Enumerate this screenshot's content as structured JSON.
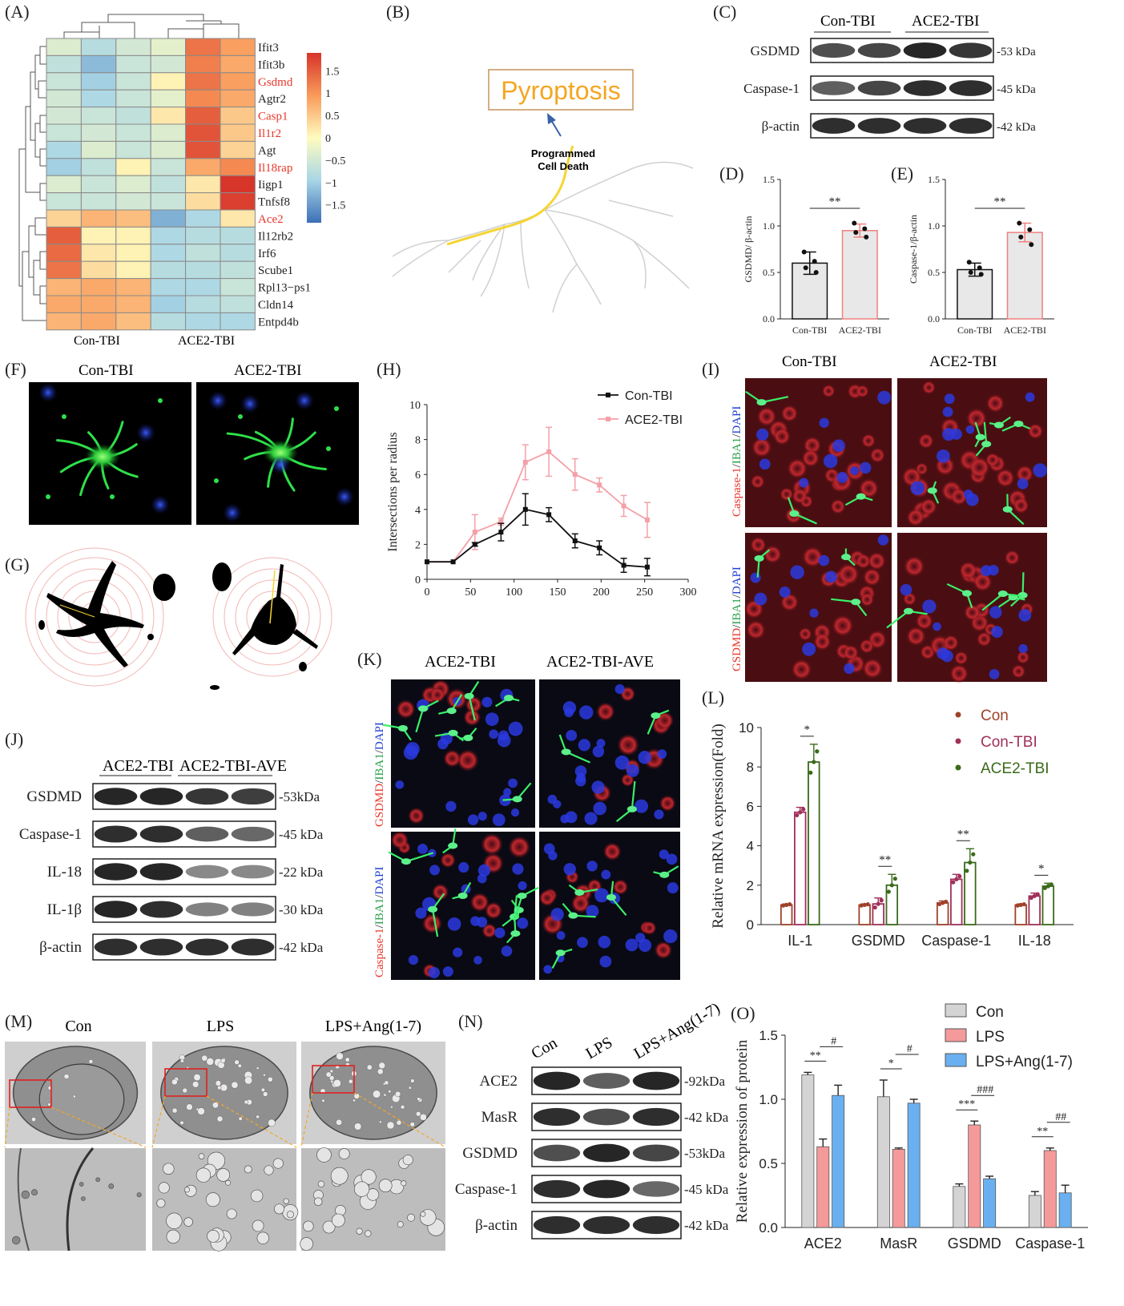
{
  "panel_labels": {
    "A": "(A)",
    "B": "(B)",
    "C": "(C)",
    "D": "(D)",
    "E": "(E)",
    "F": "(F)",
    "G": "(G)",
    "H": "(H)",
    "I": "(I)",
    "J": "(J)",
    "K": "(K)",
    "L": "(L)",
    "M": "(M)",
    "N": "(N)",
    "O": "(O)"
  },
  "heatmap": {
    "genes": [
      "Ifit3",
      "Ifit3b",
      "Gsdmd",
      "Agtr2",
      "Casp1",
      "Il1r2",
      "Agt",
      "Il18rap",
      "Iigp1",
      "Tnfsf8",
      "Ace2",
      "Il12rb2",
      "Irf6",
      "Scube1",
      "Rpl13−ps1",
      "Cldn14",
      "Entpd4b"
    ],
    "highlighted": [
      "Gsdmd",
      "Casp1",
      "Il1r2",
      "Il18rap",
      "Ace2"
    ],
    "groups": [
      "Con-TBI",
      "ACE2-TBI"
    ],
    "scale_ticks": [
      "1.5",
      "1",
      "0.5",
      "0",
      "−0.5",
      "−1",
      "−1.5"
    ],
    "values": [
      [
        -0.4,
        -0.8,
        -0.5,
        -0.3,
        1.3,
        0.9
      ],
      [
        -0.7,
        -1.2,
        -0.6,
        -0.5,
        1.2,
        0.8
      ],
      [
        -0.6,
        -1.0,
        -0.6,
        0.1,
        1.3,
        0.9
      ],
      [
        -0.5,
        -0.9,
        -0.6,
        -0.3,
        1.1,
        0.8
      ],
      [
        -0.5,
        -0.6,
        -0.7,
        0.2,
        1.5,
        0.5
      ],
      [
        -0.6,
        -0.5,
        -0.6,
        -0.4,
        1.6,
        0.5
      ],
      [
        -0.9,
        -0.4,
        -0.6,
        -0.4,
        1.6,
        0.4
      ],
      [
        -1.0,
        -0.7,
        0.1,
        -0.6,
        0.8,
        1.1
      ],
      [
        -0.4,
        -0.6,
        -0.4,
        -0.7,
        0.2,
        1.9
      ],
      [
        -0.6,
        -0.6,
        -0.5,
        -0.6,
        0.3,
        1.8
      ],
      [
        0.4,
        0.7,
        0.6,
        -1.3,
        -0.9,
        0.2
      ],
      [
        1.5,
        0.1,
        0.1,
        -0.9,
        -0.8,
        -0.8
      ],
      [
        1.4,
        0.2,
        0.1,
        -0.9,
        -0.7,
        -0.8
      ],
      [
        1.3,
        0.3,
        0.1,
        -0.8,
        -0.8,
        -0.7
      ],
      [
        0.7,
        0.8,
        0.7,
        -0.9,
        -0.9,
        -0.6
      ],
      [
        0.8,
        0.8,
        0.7,
        -1.0,
        -0.8,
        -0.7
      ],
      [
        0.7,
        0.8,
        0.6,
        -0.8,
        -0.9,
        -0.9
      ]
    ]
  },
  "panel_b": {
    "title": "Pyroptosis",
    "branch_label_1": "Programmed",
    "branch_label_2": "Cell Death"
  },
  "panel_c": {
    "groups": [
      "Con-TBI",
      "ACE2-TBI"
    ],
    "bands": [
      {
        "name": "GSDMD",
        "kda": "-53 kDa"
      },
      {
        "name": "Caspase-1",
        "kda": "-45 kDa"
      },
      {
        "name": "β-actin",
        "kda": "-42 kDa"
      }
    ]
  },
  "panel_d": {
    "chart_data": {
      "type": "bar",
      "categories": [
        "Con-TBI",
        "ACE2-TBI"
      ],
      "values": [
        0.6,
        0.95
      ],
      "errors": [
        0.12,
        0.07
      ],
      "ylabel": "GSDMD/ β-actin",
      "ylim": [
        0,
        1.5
      ],
      "yticks": [
        "0.0",
        "0.5",
        "1.0",
        "1.5"
      ],
      "sig": "**",
      "points": [
        [
          0.72,
          0.62,
          0.55,
          0.5
        ],
        [
          1.03,
          0.97,
          0.93,
          0.88
        ]
      ]
    }
  },
  "panel_e": {
    "chart_data": {
      "type": "bar",
      "categories": [
        "Con-TBI",
        "ACE2-TBI"
      ],
      "values": [
        0.53,
        0.93
      ],
      "errors": [
        0.07,
        0.1
      ],
      "ylabel": "Caspase-1/β-actin",
      "ylim": [
        0,
        1.5
      ],
      "yticks": [
        "0.0",
        "0.5",
        "1.0",
        "1.5"
      ],
      "sig": "**",
      "points": [
        [
          0.61,
          0.55,
          0.5,
          0.48
        ],
        [
          1.03,
          0.96,
          0.88,
          0.8
        ]
      ]
    }
  },
  "panel_f": {
    "labels": [
      "Con-TBI",
      "ACE2-TBI"
    ]
  },
  "panel_h": {
    "chart_data": {
      "type": "line",
      "x": [
        0,
        30,
        55,
        85,
        113,
        140,
        170,
        198,
        226,
        253
      ],
      "series": [
        {
          "name": "Con-TBI",
          "color": "#111111",
          "values": [
            1,
            1,
            2,
            2.7,
            4.0,
            3.7,
            2.2,
            1.8,
            0.8,
            0.7
          ],
          "errors": [
            0,
            0,
            0.1,
            0.5,
            0.9,
            0.4,
            0.4,
            0.4,
            0.4,
            0.5
          ]
        },
        {
          "name": "ACE2-TBI",
          "color": "#f4a0a8",
          "values": [
            1,
            1,
            2.7,
            3.3,
            6.7,
            7.3,
            6.0,
            5.4,
            4.2,
            3.4
          ],
          "errors": [
            0,
            0,
            1.0,
            0.2,
            1.0,
            1.4,
            0.9,
            0.4,
            0.6,
            1.0
          ]
        }
      ],
      "ylabel": "Intersections per radius",
      "xlim": [
        0,
        300
      ],
      "ylim": [
        0,
        10
      ],
      "xticks": [
        "0",
        "50",
        "100",
        "150",
        "200",
        "250",
        "300"
      ],
      "yticks": [
        "0",
        "2",
        "4",
        "6",
        "8",
        "10"
      ]
    }
  },
  "panel_i": {
    "columns": [
      "Con-TBI",
      "ACE2-TBI"
    ],
    "row1_label": [
      "Caspase-1",
      "/",
      "IBA1",
      "/",
      "DAPI"
    ],
    "row2_label": [
      "GSDMD",
      "/",
      "IBA1",
      "/",
      "DAPI"
    ]
  },
  "panel_j": {
    "groups": [
      "ACE2-TBI",
      "ACE2-TBI-AVE"
    ],
    "bands": [
      {
        "name": "GSDMD",
        "kda": "-53kDa"
      },
      {
        "name": "Caspase-1",
        "kda": "-45 kDa"
      },
      {
        "name": "IL-18",
        "kda": "-22 kDa"
      },
      {
        "name": "IL-1β",
        "kda": "-30 kDa"
      },
      {
        "name": "β-actin",
        "kda": "-42 kDa"
      }
    ]
  },
  "panel_k": {
    "columns": [
      "ACE2-TBI",
      "ACE2-TBI-AVE"
    ],
    "row1_label": [
      "GSDMD",
      "/",
      "IBA1",
      "/",
      "DAPI"
    ],
    "row2_label": [
      "Caspase-1",
      "/",
      "IBA1",
      "/",
      "DAPI"
    ]
  },
  "panel_l": {
    "chart_data": {
      "type": "bar",
      "categories": [
        "IL-1",
        "GSDMD",
        "Caspase-1",
        "IL-18"
      ],
      "series": [
        {
          "name": "Con",
          "color": "#a0422a",
          "values": [
            1,
            1,
            1.1,
            1
          ],
          "errors": [
            0.05,
            0.05,
            0.1,
            0.05
          ]
        },
        {
          "name": "Con-TBI",
          "color": "#a0305a",
          "values": [
            5.7,
            1.05,
            2.3,
            1.45
          ],
          "errors": [
            0.25,
            0.3,
            0.25,
            0.15
          ]
        },
        {
          "name": "ACE2-TBI",
          "color": "#3a6a1a",
          "values": [
            8.25,
            2.0,
            3.15,
            1.95
          ],
          "errors": [
            0.9,
            0.55,
            0.7,
            0.15
          ]
        }
      ],
      "ylabel": "Relative mRNA expression(Fold)",
      "ylim": [
        0,
        10
      ],
      "yticks": [
        "0",
        "2",
        "4",
        "6",
        "8",
        "10"
      ],
      "sig": [
        "*",
        "**",
        "**",
        "*"
      ]
    }
  },
  "panel_m": {
    "columns": [
      "Con",
      "LPS",
      "LPS+Ang(1-7)"
    ]
  },
  "panel_n": {
    "lanes": [
      "Con",
      "LPS",
      "LPS+Ang(1-7)"
    ],
    "bands": [
      {
        "name": "ACE2",
        "kda": "-92kDa"
      },
      {
        "name": "MasR",
        "kda": "-42 kDa"
      },
      {
        "name": "GSDMD",
        "kda": "-53kDa"
      },
      {
        "name": "Caspase-1",
        "kda": "-45 kDa"
      },
      {
        "name": "β-actin",
        "kda": "-42 kDa"
      }
    ]
  },
  "panel_o": {
    "chart_data": {
      "type": "bar",
      "categories": [
        "ACE2",
        "MasR",
        "GSDMD",
        "Caspase-1"
      ],
      "series": [
        {
          "name": "Con",
          "color": "#d4d4d4",
          "values": [
            1.19,
            1.02,
            0.32,
            0.25
          ],
          "errors": [
            0.02,
            0.13,
            0.02,
            0.03
          ]
        },
        {
          "name": "LPS",
          "color": "#f49a9a",
          "values": [
            0.63,
            0.61,
            0.8,
            0.6
          ],
          "errors": [
            0.06,
            0.01,
            0.03,
            0.02
          ]
        },
        {
          "name": "LPS+Ang(1-7)",
          "color": "#6ab0f0",
          "values": [
            1.03,
            0.97,
            0.38,
            0.27
          ],
          "errors": [
            0.08,
            0.03,
            0.02,
            0.06
          ]
        }
      ],
      "ylabel": "Relative expression of protein",
      "ylim": [
        0,
        1.5
      ],
      "yticks": [
        "0.0",
        "0.5",
        "1.0",
        "1.5"
      ],
      "sig_left": [
        "**",
        "*",
        "***",
        "**"
      ],
      "sig_right": [
        "#",
        "#",
        "###",
        "##"
      ]
    }
  },
  "colors": {
    "highlight_red": "#e8372a",
    "accent_orange": "#f5a623",
    "heat_high": "#d7342a",
    "heat_low": "#3b6fb6"
  }
}
